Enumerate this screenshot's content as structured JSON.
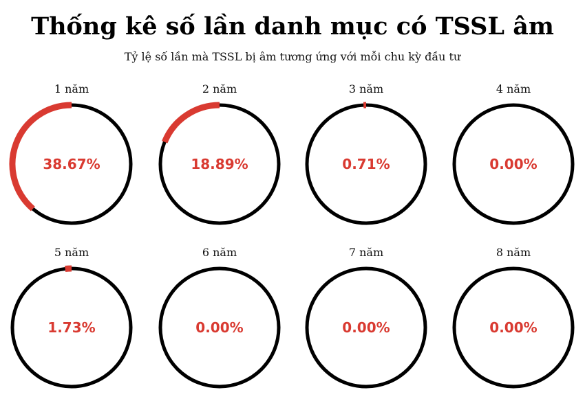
{
  "chart_data": {
    "type": "pie",
    "title": "Thống kê số lần danh mục có TSSL âm",
    "subtitle": "Tỷ lệ số lần mà TSSL bị âm tương ứng với mỗi chu kỳ đầu tư",
    "accent_color": "#d93a31",
    "ring_color": "#000000",
    "series": [
      {
        "label": "1 năm",
        "value": 38.67,
        "display": "38.67%"
      },
      {
        "label": "2 năm",
        "value": 18.89,
        "display": "18.89%"
      },
      {
        "label": "3 năm",
        "value": 0.71,
        "display": "0.71%"
      },
      {
        "label": "4 năm",
        "value": 0.0,
        "display": "0.00%"
      },
      {
        "label": "5 năm",
        "value": 1.73,
        "display": "1.73%"
      },
      {
        "label": "6 năm",
        "value": 0.0,
        "display": "0.00%"
      },
      {
        "label": "7 năm",
        "value": 0.0,
        "display": "0.00%"
      },
      {
        "label": "8 năm",
        "value": 0.0,
        "display": "0.00%"
      }
    ]
  }
}
